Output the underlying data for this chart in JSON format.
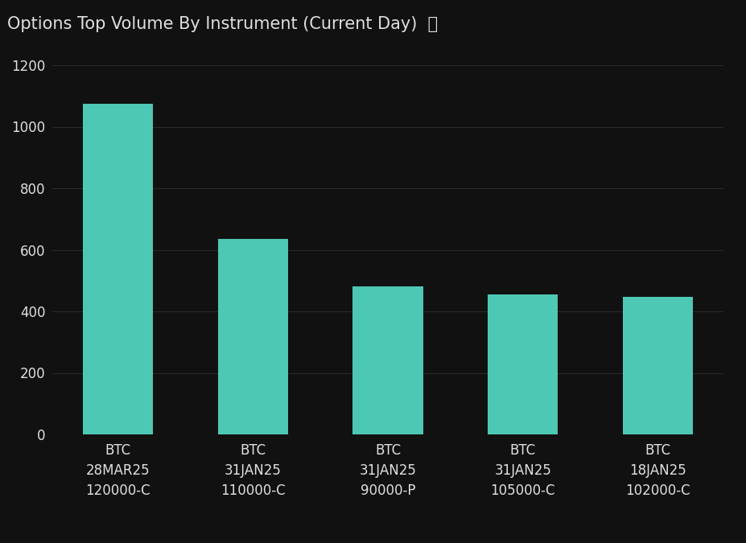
{
  "title": "Options Top Volume By Instrument (Current Day)  ⓘ",
  "categories": [
    "BTC\n28MAR25\n120000-C",
    "BTC\n31JAN25\n110000-C",
    "BTC\n31JAN25\n90000-P",
    "BTC\n31JAN25\n105000-C",
    "BTC\n18JAN25\n102000-C"
  ],
  "values": [
    1075,
    635,
    480,
    455,
    448
  ],
  "bar_color": "#4DC8B4",
  "background_color": "#111111",
  "text_color": "#e0e0e0",
  "grid_color": "#2a2a2a",
  "ylim": [
    0,
    1200
  ],
  "yticks": [
    0,
    200,
    400,
    600,
    800,
    1000,
    1200
  ],
  "title_fontsize": 15,
  "tick_fontsize": 12,
  "bar_width": 0.52
}
